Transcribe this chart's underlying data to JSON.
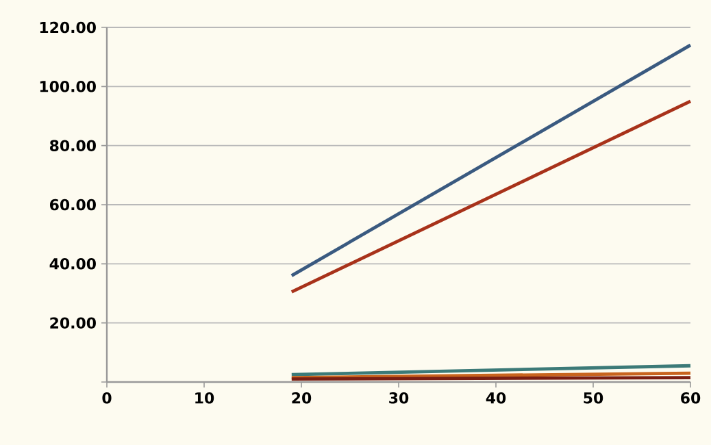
{
  "chart_data": {
    "type": "line",
    "xlim": [
      0,
      60
    ],
    "xticks": [
      0,
      10,
      20,
      30,
      40,
      50,
      60
    ],
    "ylim": [
      0,
      120
    ],
    "yticks": [
      {
        "value": 0,
        "label": null
      },
      {
        "value": 20,
        "label": "20.00"
      },
      {
        "value": 40,
        "label": "40.00"
      },
      {
        "value": 60,
        "label": "60.00"
      },
      {
        "value": 80,
        "label": "80.00"
      },
      {
        "value": 100,
        "label": "100.00"
      },
      {
        "value": 120,
        "label": "120.00"
      }
    ],
    "grid": "y",
    "marker": "none",
    "line_style": "solid",
    "x": [
      19,
      60
    ],
    "series": [
      {
        "color": "#3a5a80",
        "values": [
          36,
          114
        ]
      },
      {
        "color": "#a8321a",
        "values": [
          30.5,
          95
        ]
      },
      {
        "color": "#3c7a78",
        "values": [
          2.5,
          5.5
        ]
      },
      {
        "color": "#c8641e",
        "values": [
          1.5,
          3
        ]
      },
      {
        "color": "#7a1e12",
        "values": [
          1,
          1.5
        ]
      }
    ]
  }
}
